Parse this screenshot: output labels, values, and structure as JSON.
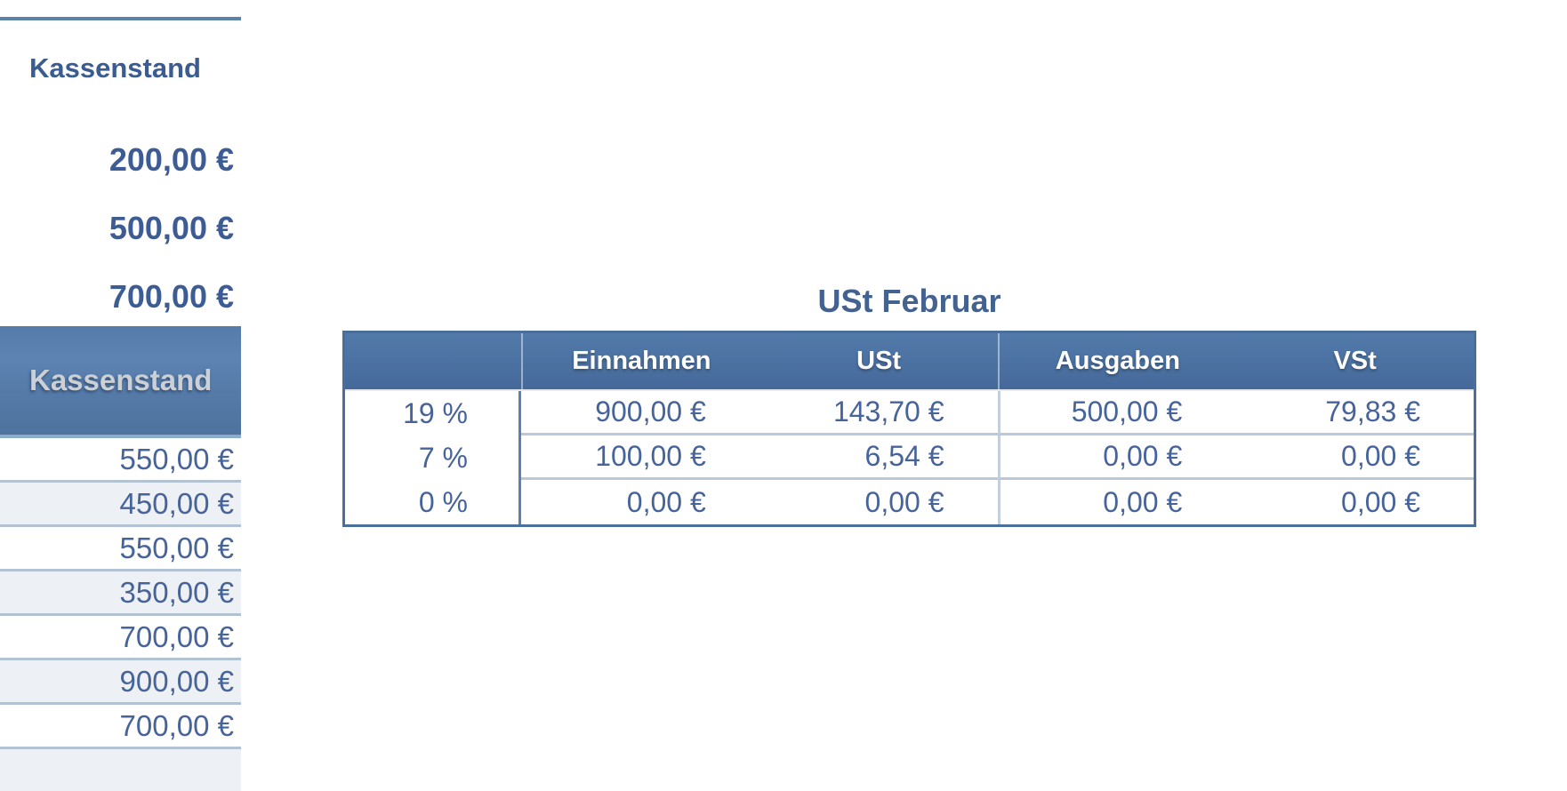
{
  "colors": {
    "accent_blue": "#44628f",
    "top_rule": "#5e81a8",
    "table_header_gradient_top": "#527aa9",
    "table_header_gradient_bottom": "#45689a",
    "panel_header_gradient_top": "#557caa",
    "panel_header_gradient_bottom": "#4f739e",
    "value_text": "#47649a",
    "bold_value_text": "#3d5c94",
    "row_alt_background": "#edf1f5",
    "row_separator": "#b2c2d3",
    "table_outer_border": "#4a6f9c",
    "light_cell_separator": "#bac9d9",
    "header_label_text": "#ffffff",
    "panel_header_label_text": "#cbd0d6"
  },
  "left_panel": {
    "title": "Kassenstand",
    "summary_values": [
      "200,00 €",
      "500,00 €",
      "700,00 €"
    ],
    "section_header": "Kassenstand",
    "rows": [
      "550,00 €",
      "450,00 €",
      "550,00 €",
      "350,00 €",
      "700,00 €",
      "900,00 €",
      "700,00 €"
    ]
  },
  "ust_table": {
    "title": "USt Februar",
    "columns": [
      "",
      "Einnahmen",
      "USt",
      "Ausgaben",
      "VSt"
    ],
    "rows": [
      {
        "rate": "19 %",
        "einnahmen": "900,00 €",
        "ust": "143,70 €",
        "ausgaben": "500,00 €",
        "vst": "79,83 €"
      },
      {
        "rate": "7 %",
        "einnahmen": "100,00 €",
        "ust": "6,54 €",
        "ausgaben": "0,00 €",
        "vst": "0,00 €"
      },
      {
        "rate": "0 %",
        "einnahmen": "0,00 €",
        "ust": "0,00 €",
        "ausgaben": "0,00 €",
        "vst": "0,00 €"
      }
    ]
  }
}
